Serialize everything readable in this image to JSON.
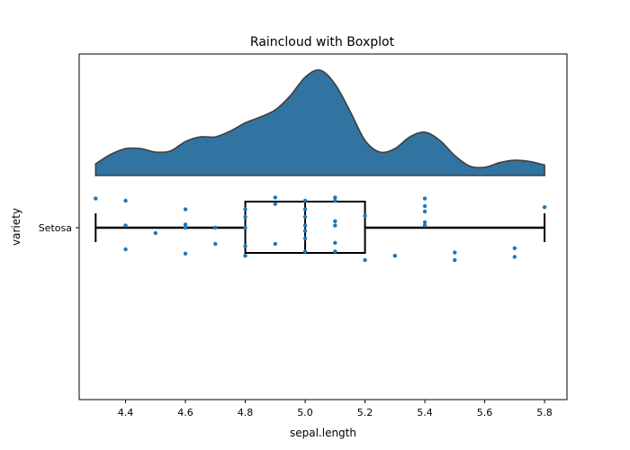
{
  "chart_data": {
    "type": "raincloud",
    "title": "Raincloud with Boxplot",
    "xlabel": "sepal.length",
    "ylabel": "variety",
    "xlim": [
      4.245,
      5.875
    ],
    "x_ticks": [
      "4.4",
      "4.6",
      "4.8",
      "5.0",
      "5.2",
      "5.4",
      "5.6",
      "5.8"
    ],
    "categories": [
      "Setosa"
    ],
    "colors": {
      "cloud": "#3274a1",
      "cloud_edge": "#3f3f3f",
      "points": "#1f77b4",
      "box": "#000000"
    },
    "box": {
      "whisker_low": 4.3,
      "q1": 4.8,
      "median": 5.0,
      "q3": 5.2,
      "whisker_high": 5.8
    },
    "density": [
      [
        4.3,
        0.1
      ],
      [
        4.35,
        0.18
      ],
      [
        4.4,
        0.23
      ],
      [
        4.45,
        0.23
      ],
      [
        4.5,
        0.2
      ],
      [
        4.55,
        0.21
      ],
      [
        4.6,
        0.29
      ],
      [
        4.65,
        0.33
      ],
      [
        4.7,
        0.33
      ],
      [
        4.75,
        0.38
      ],
      [
        4.8,
        0.45
      ],
      [
        4.85,
        0.5
      ],
      [
        4.9,
        0.56
      ],
      [
        4.95,
        0.68
      ],
      [
        5.0,
        0.84
      ],
      [
        5.05,
        0.9
      ],
      [
        5.1,
        0.78
      ],
      [
        5.15,
        0.55
      ],
      [
        5.2,
        0.3
      ],
      [
        5.25,
        0.2
      ],
      [
        5.3,
        0.23
      ],
      [
        5.35,
        0.33
      ],
      [
        5.4,
        0.37
      ],
      [
        5.45,
        0.3
      ],
      [
        5.5,
        0.17
      ],
      [
        5.55,
        0.08
      ],
      [
        5.6,
        0.07
      ],
      [
        5.65,
        0.11
      ],
      [
        5.7,
        0.13
      ],
      [
        5.75,
        0.12
      ],
      [
        5.8,
        0.09
      ]
    ],
    "points": [
      [
        4.3,
        0.27
      ],
      [
        4.4,
        0.25
      ],
      [
        4.4,
        0.02
      ],
      [
        4.4,
        -0.2
      ],
      [
        4.5,
        -0.05
      ],
      [
        4.6,
        0.17
      ],
      [
        4.6,
        0.03
      ],
      [
        4.6,
        0.0
      ],
      [
        4.6,
        -0.24
      ],
      [
        4.7,
        0.0
      ],
      [
        4.7,
        -0.15
      ],
      [
        4.8,
        0.17
      ],
      [
        4.8,
        0.1
      ],
      [
        4.8,
        0.0
      ],
      [
        4.8,
        -0.17
      ],
      [
        4.8,
        -0.26
      ],
      [
        4.9,
        0.28
      ],
      [
        4.9,
        0.22
      ],
      [
        4.9,
        -0.15
      ],
      [
        5.0,
        0.25
      ],
      [
        5.0,
        0.17
      ],
      [
        5.0,
        0.1
      ],
      [
        5.0,
        0.02
      ],
      [
        5.0,
        -0.03
      ],
      [
        5.0,
        -0.1
      ],
      [
        5.0,
        -0.22
      ],
      [
        5.1,
        0.28
      ],
      [
        5.1,
        0.25
      ],
      [
        5.1,
        0.06
      ],
      [
        5.1,
        0.02
      ],
      [
        5.1,
        -0.14
      ],
      [
        5.1,
        -0.22
      ],
      [
        5.2,
        0.11
      ],
      [
        5.2,
        -0.3
      ],
      [
        5.3,
        -0.26
      ],
      [
        5.4,
        0.27
      ],
      [
        5.4,
        0.2
      ],
      [
        5.4,
        0.15
      ],
      [
        5.4,
        0.05
      ],
      [
        5.4,
        0.02
      ],
      [
        5.5,
        -0.23
      ],
      [
        5.5,
        -0.3
      ],
      [
        5.7,
        -0.19
      ],
      [
        5.7,
        -0.27
      ],
      [
        5.8,
        0.19
      ]
    ]
  }
}
